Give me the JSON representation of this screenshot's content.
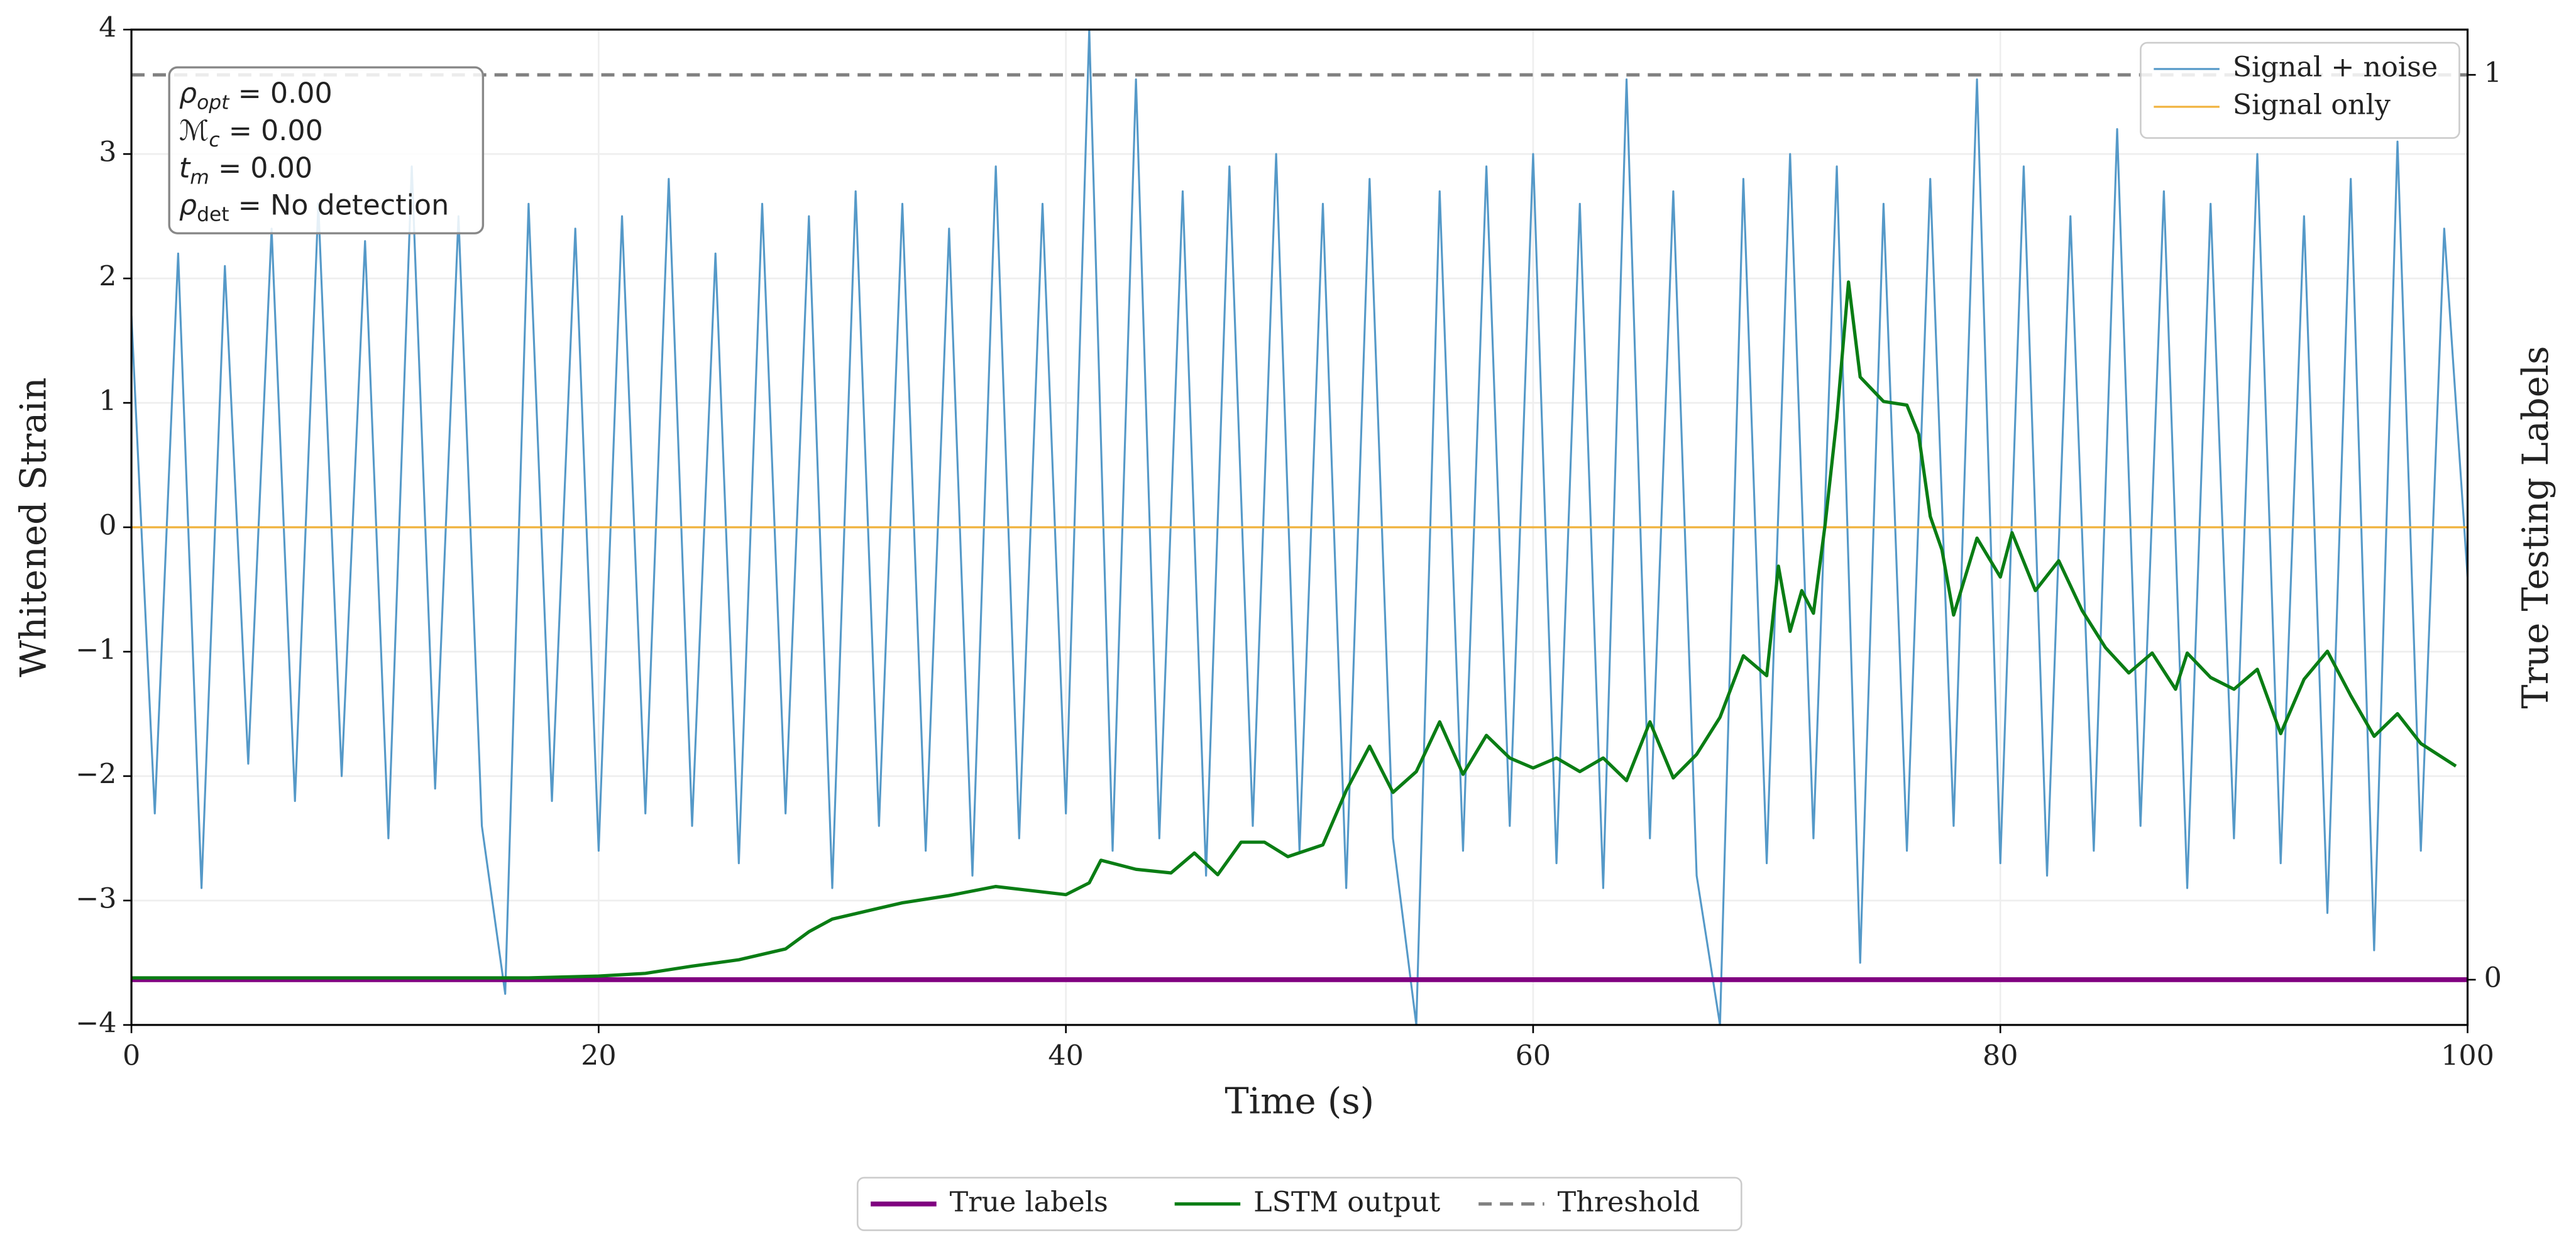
{
  "chart_data": {
    "type": "line",
    "xlabel": "Time (s)",
    "ylabel": "Whitened Strain",
    "y2label": "True Testing Labels",
    "xlim": [
      0,
      100
    ],
    "xticks": [
      0,
      20,
      40,
      60,
      80,
      100
    ],
    "ylim": [
      -4,
      4
    ],
    "yticks": [
      {
        "value": -4,
        "label": "−4"
      },
      {
        "value": -3,
        "label": "−3"
      },
      {
        "value": -2,
        "label": "−2"
      },
      {
        "value": -1,
        "label": "−1"
      },
      0,
      1,
      2,
      3,
      4
    ],
    "y2lim": [
      -0.05,
      1.05
    ],
    "y2ticks": [
      0,
      1
    ],
    "grid": true,
    "annotations": [
      {
        "symbol": "ρ",
        "sub": "opt",
        "text": " = 0.00"
      },
      {
        "symbol": "ℳ",
        "sub": "c",
        "text": " = 0.00"
      },
      {
        "symbol": "t",
        "sub": "m",
        "text": " = 0.00"
      },
      {
        "symbol": "ρ",
        "sub": "det",
        "text": " = No detection"
      }
    ],
    "series": [
      {
        "name": "Signal + noise",
        "color": "#5599c8",
        "width": 1.2,
        "legend": "upper right",
        "x": [
          0,
          1,
          2,
          3,
          4,
          5,
          6,
          7,
          8,
          9,
          10,
          11,
          12,
          13,
          14,
          15,
          16,
          17,
          18,
          19,
          20,
          21,
          22,
          23,
          24,
          25,
          26,
          27,
          28,
          29,
          30,
          31,
          32,
          33,
          34,
          35,
          36,
          37,
          38,
          39,
          40,
          41,
          42,
          43,
          44,
          45,
          46,
          47,
          48,
          49,
          50,
          51,
          52,
          53,
          54,
          55,
          56,
          57,
          58,
          59,
          60,
          61,
          62,
          63,
          64,
          65,
          66,
          67,
          68,
          69,
          70,
          71,
          72,
          73,
          74,
          75,
          76,
          77,
          78,
          79,
          80,
          81,
          82,
          83,
          84,
          85,
          86,
          87,
          88,
          89,
          90,
          91,
          92,
          93,
          94,
          95,
          96,
          97,
          98,
          99,
          100
        ],
        "values": [
          1.7,
          -2.3,
          2.2,
          -2.9,
          2.1,
          -1.9,
          2.4,
          -2.2,
          2.6,
          -2.0,
          2.3,
          -2.5,
          2.9,
          -2.1,
          2.5,
          -2.4,
          -3.75,
          2.6,
          -2.2,
          2.4,
          -2.6,
          2.5,
          -2.3,
          2.8,
          -2.4,
          2.2,
          -2.7,
          2.6,
          -2.3,
          2.5,
          -2.9,
          2.7,
          -2.4,
          2.6,
          -2.6,
          2.4,
          -2.8,
          2.9,
          -2.5,
          2.6,
          -2.3,
          4.0,
          -2.6,
          3.6,
          -2.5,
          2.7,
          -2.8,
          2.9,
          -2.4,
          3.0,
          -2.6,
          2.6,
          -2.9,
          2.8,
          -2.5,
          -4.0,
          2.7,
          -2.6,
          2.9,
          -2.4,
          3.0,
          -2.7,
          2.6,
          -2.9,
          3.6,
          -2.5,
          2.7,
          -2.8,
          -4.0,
          2.8,
          -2.7,
          3.0,
          -2.5,
          2.9,
          -3.5,
          2.6,
          -2.6,
          2.8,
          -2.4,
          3.6,
          -2.7,
          2.9,
          -2.8,
          2.5,
          -2.6,
          3.2,
          -2.4,
          2.7,
          -2.9,
          2.6,
          -2.5,
          3.0,
          -2.7,
          2.5,
          -3.1,
          2.8,
          -3.4,
          3.1,
          -2.6,
          2.4,
          -0.4
        ]
      },
      {
        "name": "Signal only",
        "color": "#f0b23c",
        "width": 1.2,
        "legend": "upper right",
        "x": [
          0,
          100
        ],
        "values": [
          0,
          0
        ]
      },
      {
        "name": "True labels",
        "color": "#800080",
        "width": 3,
        "legend": "below",
        "axis": "y2",
        "x": [
          0,
          100
        ],
        "values": [
          0,
          0
        ]
      },
      {
        "name": "LSTM output",
        "color": "#0a7d14",
        "width": 2,
        "legend": "below",
        "axis": "y2",
        "x": [
          0,
          17,
          20,
          22,
          24,
          26,
          28,
          29,
          30,
          31,
          33,
          35,
          37,
          38,
          40,
          41,
          41.5,
          43,
          44.5,
          45.5,
          46.5,
          47.5,
          48.5,
          49.5,
          51,
          52,
          53,
          54,
          55,
          56,
          57,
          58,
          59,
          60,
          61,
          62,
          63,
          64,
          65,
          66,
          67,
          68,
          69,
          70,
          70.5,
          71,
          71.5,
          72,
          72.5,
          73,
          73.5,
          74,
          75,
          76,
          76.5,
          77,
          77.5,
          78,
          79,
          80,
          80.5,
          81.5,
          82.5,
          83.5,
          84.5,
          85.5,
          86.5,
          87.5,
          88,
          89,
          90,
          91,
          92,
          93,
          94,
          95,
          96,
          97,
          98,
          99.5
        ],
        "values": [
          0.002,
          0.002,
          0.004,
          0.007,
          0.015,
          0.022,
          0.034,
          0.053,
          0.067,
          0.073,
          0.085,
          0.093,
          0.103,
          0.1,
          0.094,
          0.107,
          0.132,
          0.122,
          0.118,
          0.14,
          0.116,
          0.152,
          0.152,
          0.136,
          0.149,
          0.209,
          0.258,
          0.207,
          0.23,
          0.285,
          0.227,
          0.27,
          0.245,
          0.234,
          0.245,
          0.23,
          0.245,
          0.22,
          0.285,
          0.223,
          0.249,
          0.29,
          0.358,
          0.336,
          0.457,
          0.385,
          0.43,
          0.405,
          0.503,
          0.62,
          0.771,
          0.666,
          0.639,
          0.635,
          0.603,
          0.512,
          0.475,
          0.403,
          0.488,
          0.445,
          0.494,
          0.43,
          0.463,
          0.408,
          0.367,
          0.339,
          0.361,
          0.321,
          0.361,
          0.334,
          0.321,
          0.343,
          0.272,
          0.332,
          0.363,
          0.314,
          0.269,
          0.294,
          0.261,
          0.236
        ]
      },
      {
        "name": "Threshold",
        "color": "#808080",
        "width": 2,
        "dash": true,
        "legend": "below",
        "axis": "y2",
        "x": [
          0,
          100
        ],
        "values": [
          1,
          1
        ]
      }
    ]
  }
}
